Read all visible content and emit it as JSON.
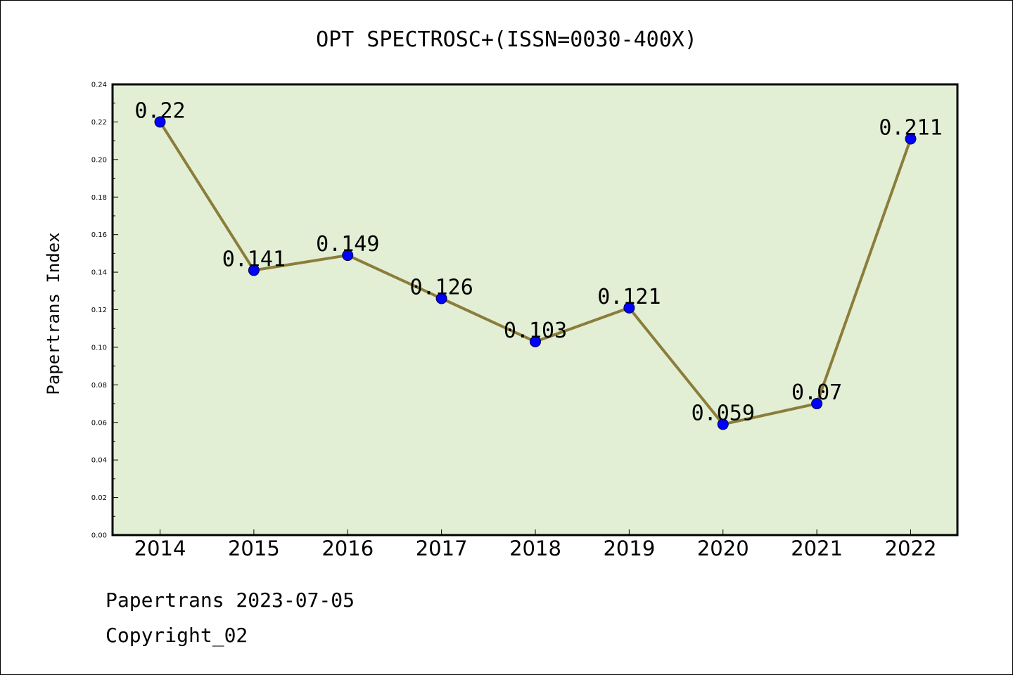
{
  "chart_data": {
    "type": "line",
    "title": "OPT SPECTROSC+(ISSN=0030-400X)",
    "xlabel": "",
    "ylabel": "Papertrans Index",
    "categories": [
      "2014",
      "2015",
      "2016",
      "2017",
      "2018",
      "2019",
      "2020",
      "2021",
      "2022"
    ],
    "values": [
      0.22,
      0.141,
      0.149,
      0.126,
      0.103,
      0.121,
      0.059,
      0.07,
      0.211
    ],
    "data_labels": [
      "0.22",
      "0.141",
      "0.149",
      "0.126",
      "0.103",
      "0.121",
      "0.059",
      "0.07",
      "0.211"
    ],
    "ylim": [
      0,
      0.24
    ],
    "yticks": [
      "0.00",
      "0.02",
      "0.04",
      "0.06",
      "0.08",
      "0.10",
      "0.12",
      "0.14",
      "0.16",
      "0.18",
      "0.20",
      "0.22",
      "0.24"
    ],
    "grid": false,
    "colors": {
      "plot_background": "#e2efd5",
      "line": "#8b7d3a",
      "marker": "#0000ff"
    }
  },
  "footer": {
    "line1": "Papertrans 2023-07-05",
    "line2": "Copyright_02"
  }
}
